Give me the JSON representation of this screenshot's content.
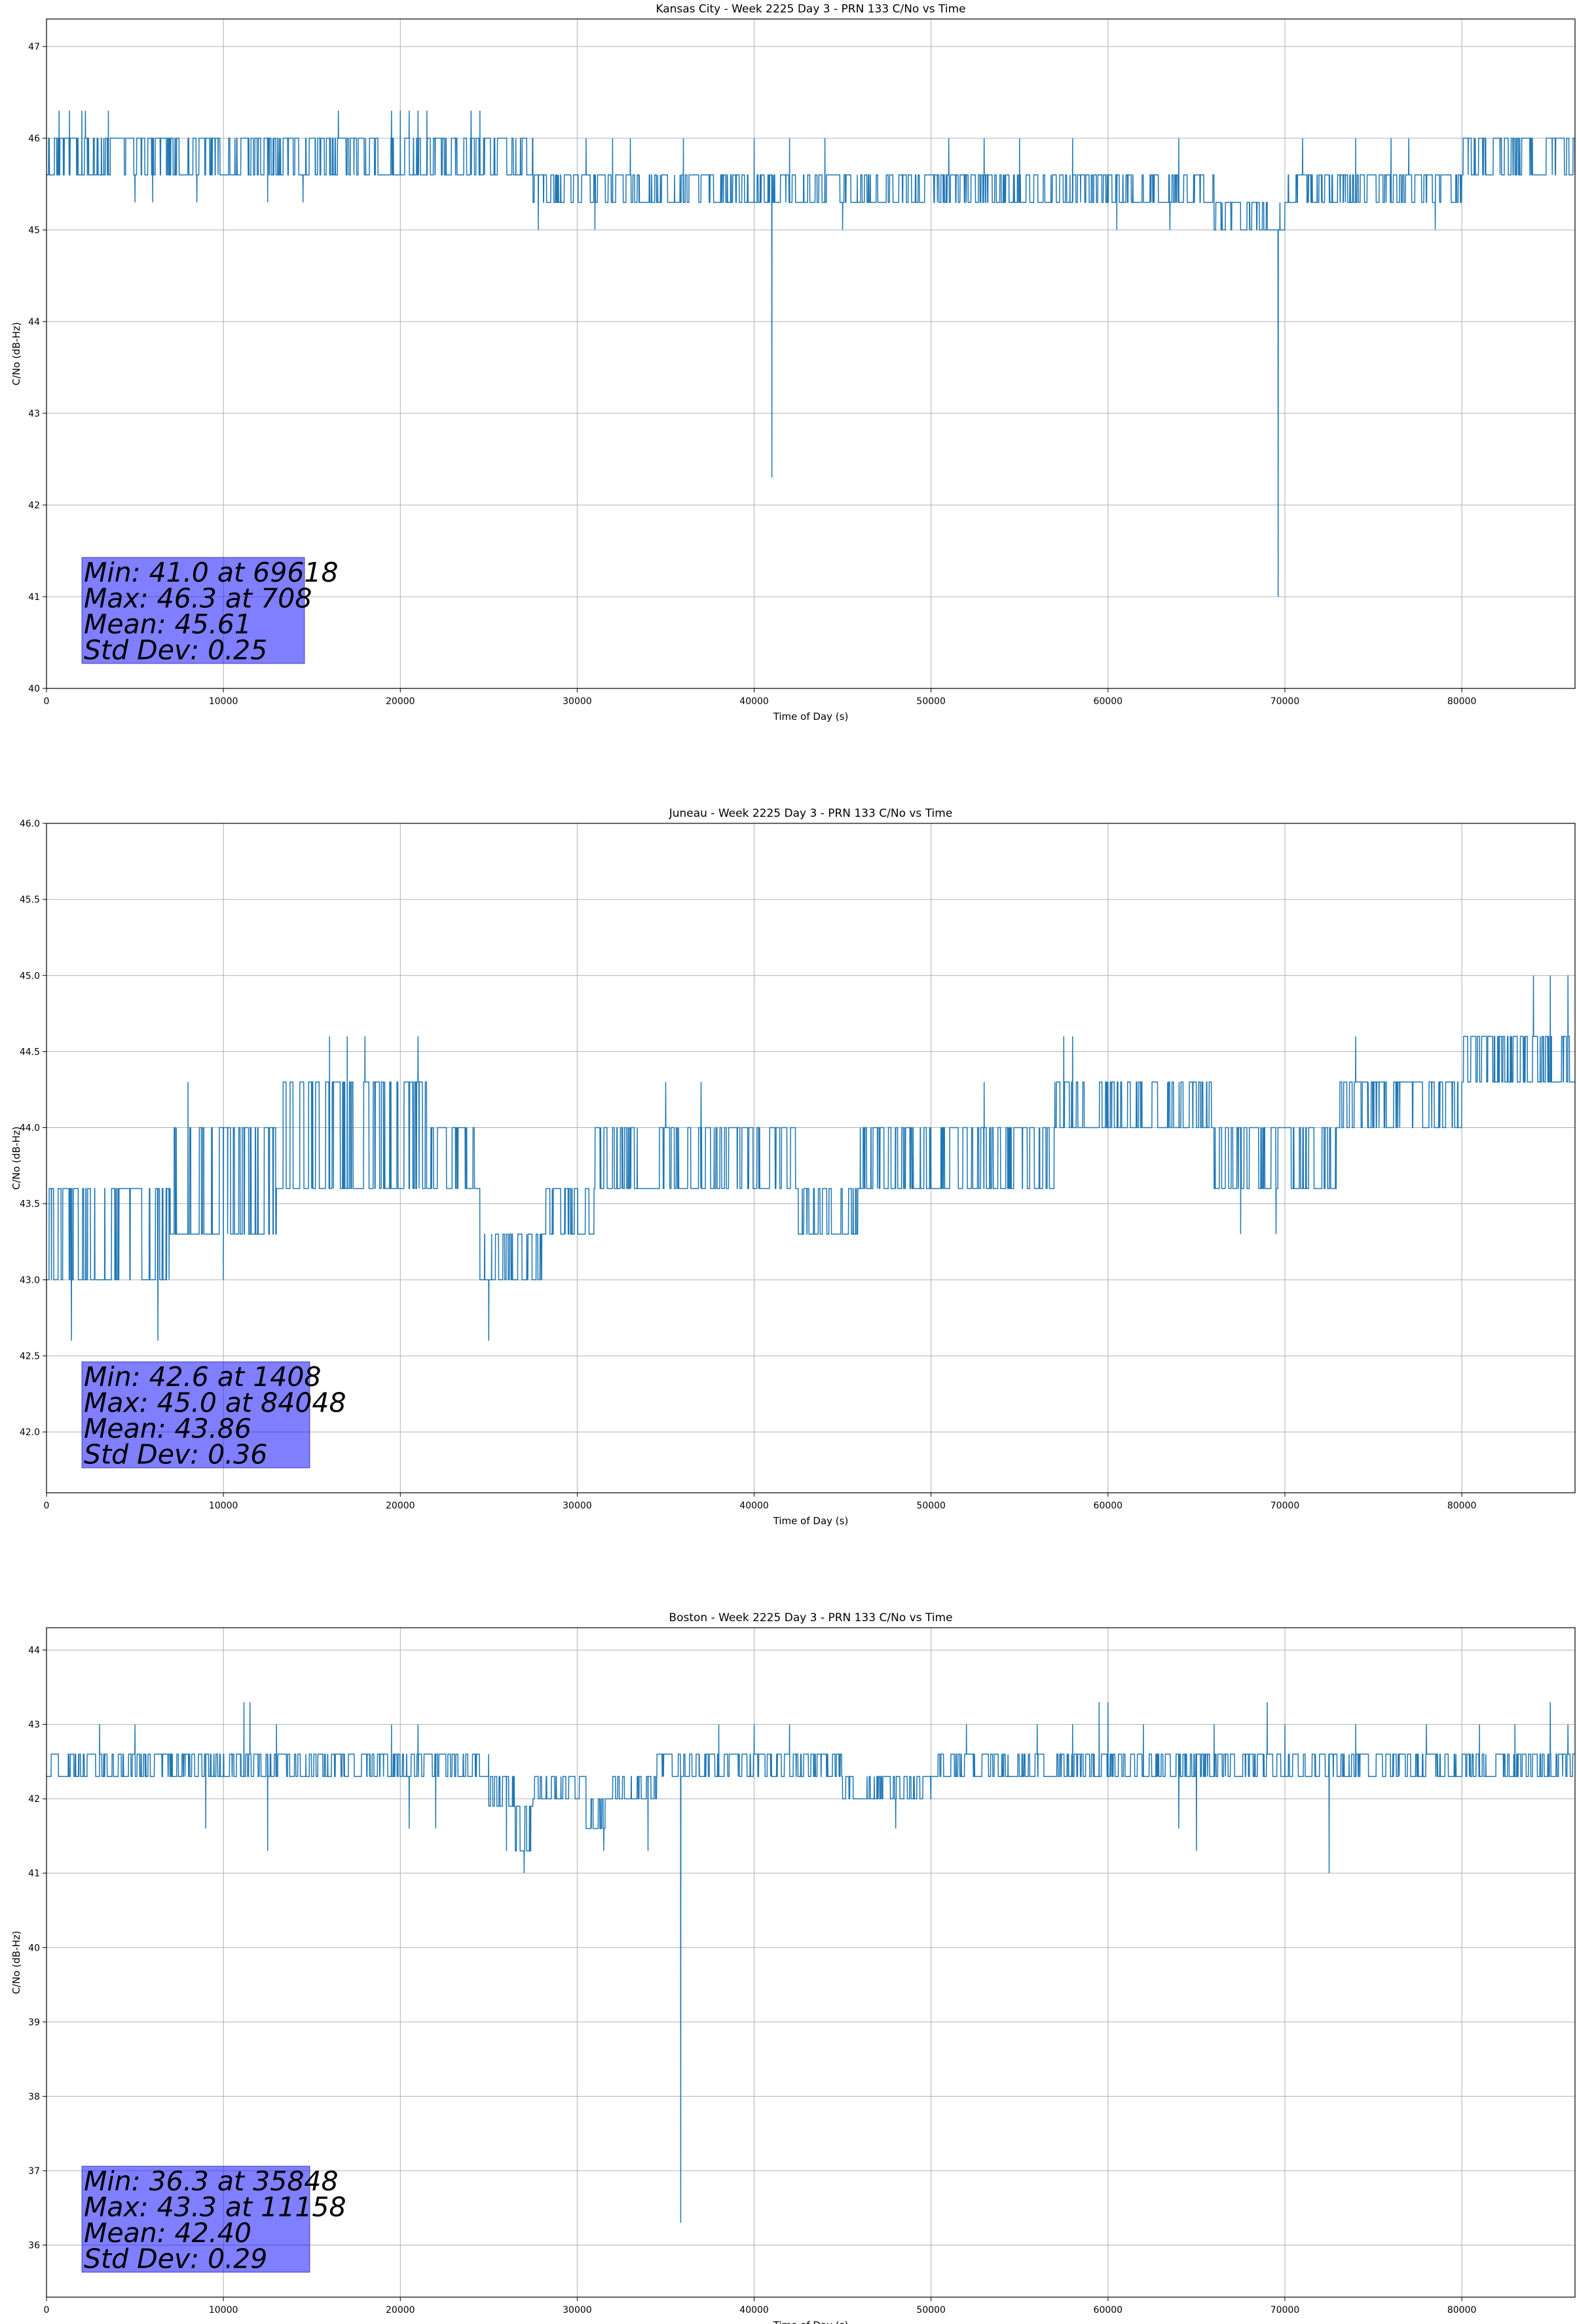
{
  "series_color": "#1f77b4",
  "chart_data": [
    {
      "type": "line",
      "title": "Kansas City - Week 2225 Day 3 - PRN 133 C/No vs Time",
      "xlabel": "Time of Day (s)",
      "ylabel": "C/No (dB-Hz)",
      "xlim": [
        0,
        86400
      ],
      "ylim": [
        40,
        47.3
      ],
      "xticks": [
        0,
        10000,
        20000,
        30000,
        40000,
        50000,
        60000,
        70000,
        80000
      ],
      "yticks": [
        40,
        41,
        42,
        43,
        44,
        45,
        46,
        47
      ],
      "ytick_labels": [
        "40",
        "41",
        "42",
        "43",
        "44",
        "45",
        "46",
        "47"
      ],
      "grid": true,
      "series": [
        {
          "values_summary": "C/No alternates rapidly between adjacent 0.3 dB-Hz levels; segments list [start_s, end_s, low, high]",
          "segments": [
            [
              0,
              7500,
              45.6,
              46.0
            ],
            [
              7500,
              21000,
              45.6,
              46.0
            ],
            [
              21000,
              27500,
              45.6,
              46.0
            ],
            [
              27500,
              45000,
              45.3,
              45.6
            ],
            [
              45000,
              62000,
              45.3,
              45.6
            ],
            [
              62000,
              66000,
              45.3,
              45.6
            ],
            [
              66000,
              70000,
              45.0,
              45.3
            ],
            [
              70000,
              80000,
              45.3,
              45.6
            ],
            [
              80000,
              86400,
              45.6,
              46.0
            ]
          ],
          "excursions": [
            [
              708,
              46.3
            ],
            [
              1300,
              46.3
            ],
            [
              2000,
              46.3
            ],
            [
              2200,
              46.3
            ],
            [
              3500,
              46.3
            ],
            [
              16500,
              46.3
            ],
            [
              19500,
              46.3
            ],
            [
              20000,
              46.3
            ],
            [
              20500,
              46.3
            ],
            [
              21000,
              46.3
            ],
            [
              21500,
              46.3
            ],
            [
              24000,
              46.3
            ],
            [
              24500,
              46.3
            ],
            [
              5000,
              45.3
            ],
            [
              6000,
              45.3
            ],
            [
              8500,
              45.3
            ],
            [
              12500,
              45.3
            ],
            [
              14500,
              45.3
            ],
            [
              27800,
              45.0
            ],
            [
              31000,
              45.0
            ],
            [
              45000,
              45.0
            ],
            [
              60500,
              45.0
            ],
            [
              63500,
              45.0
            ],
            [
              68000,
              45.0
            ],
            [
              78500,
              45.0
            ],
            [
              30500,
              46.0
            ],
            [
              32000,
              46.0
            ],
            [
              33000,
              46.0
            ],
            [
              36000,
              46.0
            ],
            [
              40000,
              46.0
            ],
            [
              42000,
              46.0
            ],
            [
              44000,
              46.0
            ],
            [
              51000,
              46.0
            ],
            [
              53000,
              46.0
            ],
            [
              55000,
              46.0
            ],
            [
              58000,
              46.0
            ],
            [
              64000,
              46.0
            ],
            [
              71000,
              46.0
            ],
            [
              74000,
              46.0
            ],
            [
              76000,
              46.0
            ],
            [
              77000,
              46.0
            ],
            [
              41000,
              42.3
            ],
            [
              69618,
              41.0
            ]
          ]
        }
      ],
      "stats": [
        "Min: 41.0 at 69618",
        "Max: 46.3 at 708",
        "Mean: 45.61",
        "Std Dev: 0.25"
      ]
    },
    {
      "type": "line",
      "title": "Juneau - Week 2225 Day 3 - PRN 133 C/No vs Time",
      "xlabel": "Time of Day (s)",
      "ylabel": "C/No (dB-Hz)",
      "xlim": [
        0,
        86400
      ],
      "ylim": [
        41.6,
        46.0
      ],
      "xticks": [
        0,
        10000,
        20000,
        30000,
        40000,
        50000,
        60000,
        70000,
        80000
      ],
      "yticks": [
        42.0,
        42.5,
        43.0,
        43.5,
        44.0,
        44.5,
        45.0,
        45.5,
        46.0
      ],
      "ytick_labels": [
        "42.0",
        "42.5",
        "43.0",
        "43.5",
        "44.0",
        "44.5",
        "45.0",
        "45.5",
        "46.0"
      ],
      "grid": true,
      "series": [
        {
          "values_summary": "C/No alternates rapidly between adjacent 0.3 dB-Hz levels; segments list [start_s, end_s, low, high]",
          "segments": [
            [
              0,
              7000,
              43.0,
              43.6
            ],
            [
              7000,
              13000,
              43.3,
              44.0
            ],
            [
              13000,
              21500,
              43.6,
              44.3
            ],
            [
              21500,
              24500,
              43.6,
              44.0
            ],
            [
              24500,
              28000,
              43.0,
              43.3
            ],
            [
              28000,
              31000,
              43.3,
              43.6
            ],
            [
              31000,
              42500,
              43.6,
              44.0
            ],
            [
              42500,
              46000,
              43.3,
              43.6
            ],
            [
              46000,
              57000,
              43.6,
              44.0
            ],
            [
              57000,
              66000,
              44.0,
              44.3
            ],
            [
              66000,
              73000,
              43.6,
              44.0
            ],
            [
              73000,
              80000,
              44.0,
              44.3
            ],
            [
              80000,
              86400,
              44.3,
              44.6
            ]
          ],
          "excursions": [
            [
              1408,
              42.6
            ],
            [
              6300,
              42.6
            ],
            [
              25000,
              42.6
            ],
            [
              16000,
              44.6
            ],
            [
              17000,
              44.6
            ],
            [
              18000,
              44.6
            ],
            [
              21000,
              44.6
            ],
            [
              57500,
              44.6
            ],
            [
              58000,
              44.6
            ],
            [
              74000,
              44.6
            ],
            [
              84048,
              45.0
            ],
            [
              85000,
              45.0
            ],
            [
              86000,
              45.0
            ],
            [
              8000,
              44.3
            ],
            [
              10000,
              44.3
            ],
            [
              15000,
              44.3
            ],
            [
              35000,
              44.3
            ],
            [
              37000,
              44.3
            ],
            [
              53000,
              44.3
            ],
            [
              60000,
              44.3
            ],
            [
              67500,
              43.3
            ],
            [
              69500,
              43.3
            ],
            [
              10000,
              43.0
            ],
            [
              3500,
              43.0
            ],
            [
              5500,
              43.0
            ],
            [
              27000,
              43.0
            ]
          ]
        }
      ],
      "stats": [
        "Min: 42.6 at 1408",
        "Max: 45.0 at 84048",
        "Mean: 43.86",
        "Std Dev: 0.36"
      ]
    },
    {
      "type": "line",
      "title": "Boston - Week 2225 Day 3 - PRN 133 C/No vs Time",
      "xlabel": "Time of Day (s)",
      "ylabel": "C/No (dB-Hz)",
      "xlim": [
        0,
        86400
      ],
      "ylim": [
        35.3,
        44.3
      ],
      "xticks": [
        0,
        10000,
        20000,
        30000,
        40000,
        50000,
        60000,
        70000,
        80000
      ],
      "yticks": [
        36,
        37,
        38,
        39,
        40,
        41,
        42,
        43,
        44
      ],
      "ytick_labels": [
        "36",
        "37",
        "38",
        "39",
        "40",
        "41",
        "42",
        "43",
        "44"
      ],
      "grid": true,
      "series": [
        {
          "values_summary": "C/No alternates rapidly between adjacent 0.3 dB-Hz levels; segments list [start_s, end_s, low, high]",
          "segments": [
            [
              0,
              25000,
              42.3,
              42.6
            ],
            [
              25000,
              26500,
              41.9,
              42.3
            ],
            [
              26500,
              27500,
              41.3,
              41.9
            ],
            [
              27500,
              30500,
              42.0,
              42.3
            ],
            [
              30500,
              32000,
              41.6,
              42.0
            ],
            [
              32000,
              34500,
              42.0,
              42.3
            ],
            [
              34500,
              45000,
              42.3,
              42.6
            ],
            [
              45000,
              50000,
              42.0,
              42.3
            ],
            [
              50000,
              86400,
              42.3,
              42.6
            ]
          ],
          "excursions": [
            [
              35848,
              36.3
            ],
            [
              27000,
              41.0
            ],
            [
              72500,
              41.0
            ],
            [
              26000,
              41.3
            ],
            [
              12500,
              41.3
            ],
            [
              31500,
              41.3
            ],
            [
              34000,
              41.3
            ],
            [
              65000,
              41.3
            ],
            [
              11158,
              43.3
            ],
            [
              11500,
              43.3
            ],
            [
              59500,
              43.3
            ],
            [
              60000,
              43.3
            ],
            [
              69000,
              43.3
            ],
            [
              85000,
              43.3
            ],
            [
              3000,
              43.0
            ],
            [
              5000,
              43.0
            ],
            [
              9000,
              43.0
            ],
            [
              13000,
              43.0
            ],
            [
              19500,
              43.0
            ],
            [
              21000,
              43.0
            ],
            [
              38000,
              43.0
            ],
            [
              40000,
              43.0
            ],
            [
              42000,
              43.0
            ],
            [
              52000,
              43.0
            ],
            [
              56000,
              43.0
            ],
            [
              58000,
              43.0
            ],
            [
              62000,
              43.0
            ],
            [
              66000,
              43.0
            ],
            [
              70000,
              43.0
            ],
            [
              74000,
              43.0
            ],
            [
              78000,
              43.0
            ],
            [
              81000,
              43.0
            ],
            [
              83000,
              43.0
            ],
            [
              86000,
              43.0
            ],
            [
              9000,
              41.6
            ],
            [
              20500,
              41.6
            ],
            [
              22000,
              41.6
            ],
            [
              48000,
              41.6
            ],
            [
              64000,
              41.6
            ]
          ]
        }
      ],
      "stats": [
        "Min: 36.3 at 35848",
        "Max: 43.3 at 11158",
        "Mean: 42.40",
        "Std Dev: 0.29"
      ]
    }
  ]
}
